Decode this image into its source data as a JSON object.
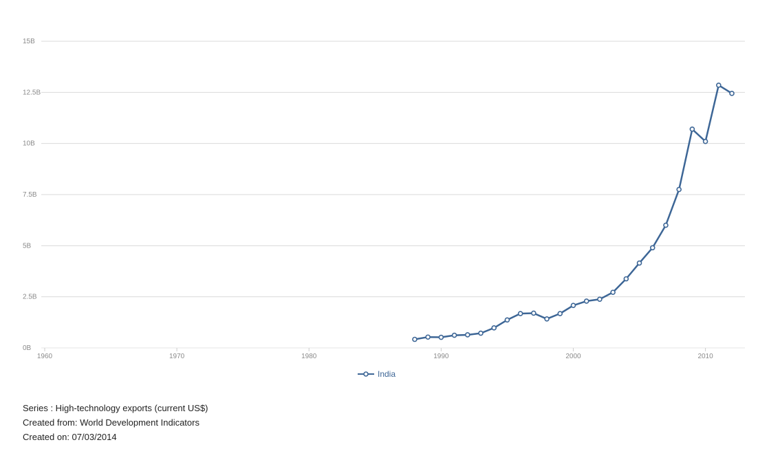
{
  "chart_data": {
    "type": "line",
    "title": "",
    "xlabel": "",
    "ylabel": "",
    "xlim": [
      1960,
      2012
    ],
    "ylim": [
      0,
      15000000000
    ],
    "x_ticks": [
      1960,
      1970,
      1980,
      1990,
      2000,
      2010
    ],
    "x_tick_labels": [
      "1960",
      "1970",
      "1980",
      "1990",
      "2000",
      "2010"
    ],
    "y_ticks": [
      0,
      2500000000,
      5000000000,
      7500000000,
      10000000000,
      12500000000,
      15000000000
    ],
    "y_tick_labels": [
      "0B",
      "2.5B",
      "5B",
      "7.5B",
      "10B",
      "12.5B",
      "15B"
    ],
    "grid": "horizontal",
    "legend": "bottom-center",
    "series": [
      {
        "name": "India",
        "color": "#3d6696",
        "x": [
          1988,
          1989,
          1990,
          1991,
          1992,
          1993,
          1994,
          1995,
          1996,
          1997,
          1998,
          1999,
          2000,
          2001,
          2002,
          2003,
          2004,
          2005,
          2006,
          2007,
          2008,
          2009,
          2010,
          2011,
          2012
        ],
        "values": [
          420000000,
          530000000,
          520000000,
          620000000,
          640000000,
          720000000,
          980000000,
          1370000000,
          1680000000,
          1700000000,
          1420000000,
          1680000000,
          2080000000,
          2290000000,
          2380000000,
          2720000000,
          3380000000,
          4150000000,
          4900000000,
          6000000000,
          7750000000,
          10700000000,
          10100000000,
          12850000000,
          12450000000
        ]
      }
    ]
  },
  "footer": {
    "series_line": "Series : High-technology exports (current US$)",
    "source_line": "Created from: World Development Indicators",
    "date_line": "Created on: 07/03/2014"
  }
}
